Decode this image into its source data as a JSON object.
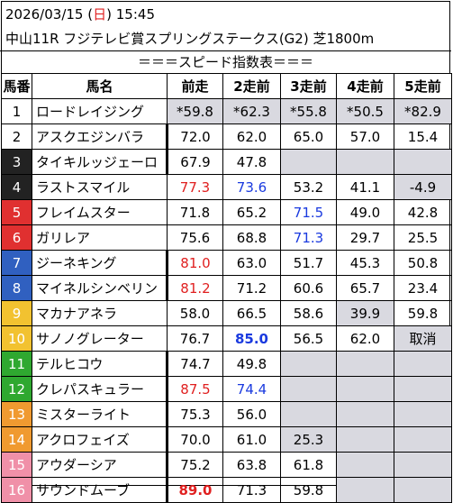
{
  "header": {
    "date": "2026/03/15",
    "dow_open": "(",
    "dow": "日",
    "dow_close": ")",
    "time": "15:45",
    "race": "中山11R フジテレビ賞スプリングステークス(G2) 芝1800m"
  },
  "subtitle": "＝＝＝スピード指数表＝＝＝",
  "columns": [
    "馬番",
    "馬名",
    "前走",
    "2走前",
    "3走前",
    "4走前",
    "5走前"
  ],
  "rows": [
    {
      "no": "1",
      "name": "ロードレイジング",
      "v": [
        "*59.8",
        "*62.3",
        "*55.8",
        "*50.5",
        "*82.9"
      ]
    },
    {
      "no": "2",
      "name": "アスクエジンバラ",
      "v": [
        "72.0",
        "62.0",
        "65.0",
        "57.0",
        "15.4"
      ]
    },
    {
      "no": "3",
      "name": "タイキルッジェーロ",
      "v": [
        "67.9",
        "47.8",
        "",
        "",
        ""
      ]
    },
    {
      "no": "4",
      "name": "ラストスマイル",
      "v": [
        "77.3",
        "73.6",
        "53.2",
        "41.1",
        "-4.9"
      ]
    },
    {
      "no": "5",
      "name": "フレイムスター",
      "v": [
        "71.8",
        "65.2",
        "71.5",
        "49.0",
        "42.8"
      ]
    },
    {
      "no": "6",
      "name": "ガリレア",
      "v": [
        "75.6",
        "68.8",
        "71.3",
        "29.7",
        "25.5"
      ]
    },
    {
      "no": "7",
      "name": "ジーネキング",
      "v": [
        "81.0",
        "63.0",
        "51.7",
        "45.3",
        "50.8"
      ]
    },
    {
      "no": "8",
      "name": "マイネルシンベリン",
      "v": [
        "81.2",
        "71.2",
        "60.6",
        "65.7",
        "23.4"
      ]
    },
    {
      "no": "9",
      "name": "マカナアネラ",
      "v": [
        "58.0",
        "66.5",
        "58.6",
        "39.9",
        "59.8"
      ]
    },
    {
      "no": "10",
      "name": "サノノグレーター",
      "v": [
        "76.7",
        "85.0",
        "56.5",
        "62.0",
        "取消"
      ]
    },
    {
      "no": "11",
      "name": "テルヒコウ",
      "v": [
        "74.7",
        "49.8",
        "",
        "",
        ""
      ]
    },
    {
      "no": "12",
      "name": "クレパスキュラー",
      "v": [
        "87.5",
        "74.4",
        "",
        "",
        ""
      ]
    },
    {
      "no": "13",
      "name": "ミスターライト",
      "v": [
        "75.3",
        "56.0",
        "",
        "",
        ""
      ]
    },
    {
      "no": "14",
      "name": "アクロフェイズ",
      "v": [
        "70.0",
        "61.0",
        "25.3",
        "",
        ""
      ]
    },
    {
      "no": "15",
      "name": "アウダーシア",
      "v": [
        "75.2",
        "63.8",
        "61.8",
        "",
        ""
      ]
    },
    {
      "no": "16",
      "name": "サウンドムーブ",
      "v": [
        "89.0",
        "71.3",
        "59.8",
        "",
        ""
      ]
    }
  ],
  "styles": {
    "red": "#e02020",
    "blue": "#1a3adf",
    "gray_cell": "#d9d9e0"
  }
}
